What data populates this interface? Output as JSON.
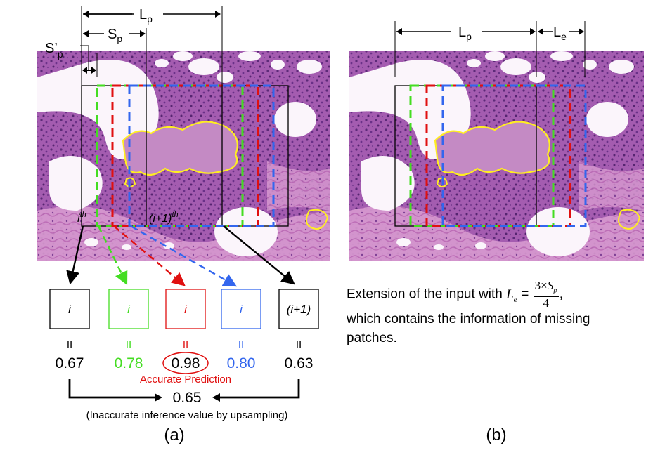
{
  "panel_a": {
    "top_labels": {
      "lp": "L",
      "lp_sub": "p",
      "sp": "S",
      "sp_sub": "p",
      "sprime": "S’",
      "sprime_sub": "p"
    },
    "patch_labels": {
      "ith": "i",
      "ith_sup": "th",
      "i1th": "(i+1)",
      "i1th_sup": "th"
    },
    "boxes": [
      {
        "label": "i",
        "value": "0.67",
        "color": "#000000"
      },
      {
        "label": "i",
        "value": "0.78",
        "color": "#44dd22"
      },
      {
        "label": "i",
        "value": "0.98",
        "color": "#e01010"
      },
      {
        "label": "i",
        "value": "0.80",
        "color": "#3366ee"
      },
      {
        "label": "(i+1)",
        "value": "0.63",
        "color": "#000000"
      }
    ],
    "equals": "II",
    "accurate_prediction": "Accurate Prediction",
    "upsampled_value": "0.65",
    "upsampling_note": "(Inaccurate inference value by upsampling)",
    "caption": "(a)"
  },
  "panel_b": {
    "top_labels": {
      "lp": "L",
      "lp_sub": "p",
      "le": "L",
      "le_sub": "e"
    },
    "caption_text": {
      "before": "Extension of the input with ",
      "le": "L",
      "le_sub": "e",
      "equals": " = ",
      "num_prefix": "3×",
      "num_s": "S",
      "num_sub": "p",
      "den": "4",
      "after_comma": ",",
      "line2": "which contains the information of missing",
      "line3": "patches."
    },
    "caption": "(b)"
  },
  "colors": {
    "green": "#44dd22",
    "red": "#e01010",
    "blue": "#3366ee",
    "black": "#000000",
    "yellow": "#ffee22",
    "tissue": "#b068b8"
  }
}
